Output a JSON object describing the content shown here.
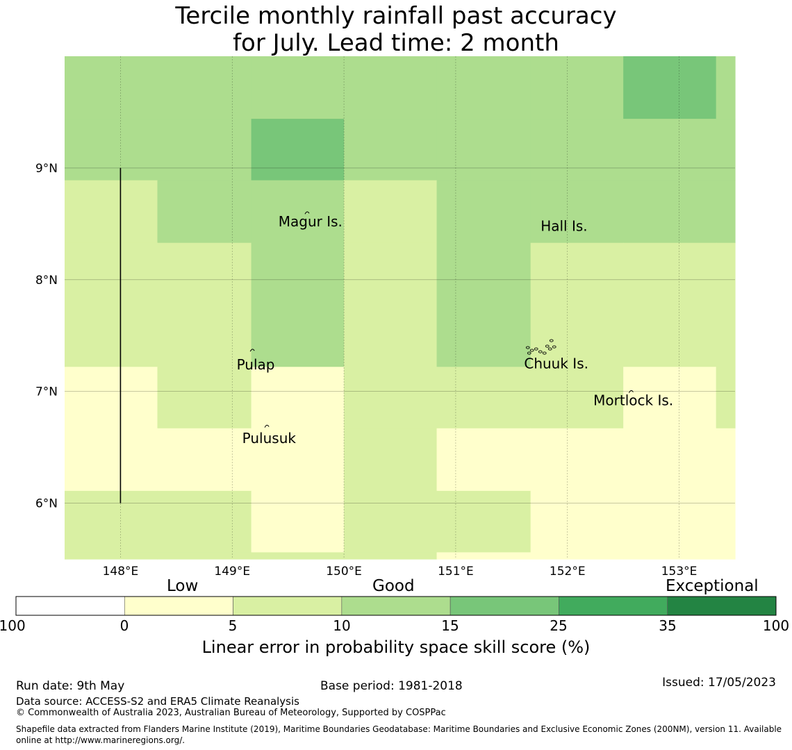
{
  "title": {
    "line1": "Tercile monthly rainfall past accuracy",
    "line2": "for July. Lead time: 2 month"
  },
  "map": {
    "lon_range": [
      147.5,
      153.5
    ],
    "lat_range": [
      5.5,
      10.0
    ],
    "x_ticks": [
      {
        "value": 148,
        "label": "148°E"
      },
      {
        "value": 149,
        "label": "149°E"
      },
      {
        "value": 150,
        "label": "150°E"
      },
      {
        "value": 151,
        "label": "151°E"
      },
      {
        "value": 152,
        "label": "152°E"
      },
      {
        "value": 153,
        "label": "153°E"
      }
    ],
    "y_ticks": [
      {
        "value": 9,
        "label": "9°N"
      },
      {
        "value": 8,
        "label": "8°N"
      },
      {
        "value": 7,
        "label": "7°N"
      },
      {
        "value": 6,
        "label": "6°N"
      }
    ],
    "grid": true,
    "lon_edges": [
      147.5,
      148.33,
      149.17,
      150.0,
      150.83,
      151.67,
      152.5,
      153.33,
      153.5
    ],
    "lat_edges": [
      10.0,
      9.44,
      8.89,
      8.33,
      7.22,
      6.67,
      6.11,
      5.56,
      5.5
    ],
    "cells": [
      [
        2,
        2,
        2,
        2,
        2,
        2,
        3,
        2
      ],
      [
        2,
        2,
        3,
        2,
        2,
        2,
        2,
        2
      ],
      [
        1,
        2,
        2,
        1,
        2,
        2,
        2,
        2
      ],
      [
        1,
        1,
        2,
        1,
        2,
        1,
        1,
        1
      ],
      [
        0,
        1,
        0,
        1,
        1,
        1,
        0,
        1
      ],
      [
        0,
        0,
        0,
        1,
        0,
        0,
        0,
        0
      ],
      [
        1,
        1,
        0,
        1,
        1,
        0,
        0,
        0
      ],
      [
        1,
        1,
        1,
        1,
        0,
        0,
        0,
        0
      ]
    ],
    "meridian_line": {
      "lon": 148.0,
      "lat_from": 6.0,
      "lat_to": 9.0
    },
    "places": [
      {
        "name": "Magur Is.",
        "lon": 149.7,
        "lat": 8.52,
        "marker_lon": 149.67,
        "marker_lat": 8.6
      },
      {
        "name": "Hall Is.",
        "lon": 151.97,
        "lat": 8.48
      },
      {
        "name": "Pulap",
        "lon": 149.21,
        "lat": 7.24,
        "marker_lon": 149.18,
        "marker_lat": 7.37
      },
      {
        "name": "Chuuk Is.",
        "lon": 151.9,
        "lat": 7.25,
        "marker_lon": 151.77,
        "marker_lat": 7.38
      },
      {
        "name": "Mortlock Is.",
        "lon": 152.59,
        "lat": 6.92,
        "marker_lon": 152.57,
        "marker_lat": 7.0
      },
      {
        "name": "Pulusuk",
        "lon": 149.33,
        "lat": 6.58,
        "marker_lon": 149.31,
        "marker_lat": 6.69
      }
    ]
  },
  "colorbar": {
    "words": {
      "low": "Low",
      "good": "Good",
      "exceptional": "Exceptional"
    },
    "bins": [
      {
        "from": "-100",
        "to": "0",
        "color": "#ffffff"
      },
      {
        "from": "0",
        "to": "5",
        "color": "#ffffcc"
      },
      {
        "from": "5",
        "to": "10",
        "color": "#d9f0a3"
      },
      {
        "from": "10",
        "to": "15",
        "color": "#addd8e"
      },
      {
        "from": "15",
        "to": "25",
        "color": "#78c679"
      },
      {
        "from": "25",
        "to": "35",
        "color": "#41ab5d"
      },
      {
        "from": "35",
        "to": "100",
        "color": "#238443"
      }
    ],
    "tick_labels": [
      "-100",
      "0",
      "5",
      "10",
      "15",
      "25",
      "35",
      "100"
    ],
    "label": "Linear error in probability space skill score (%)"
  },
  "footer": {
    "run_date": "Run date: 9th May",
    "base_period": "Base period: 1981-2018",
    "issued": "Issued: 17/05/2023",
    "data_source": "Data source: ACCESS-S2 and ERA5 Climate Reanalysis",
    "copyright": "© Commonwealth of Australia 2023, Australian Bureau of Meteorology, Supported by COSPPac",
    "shapefile_line1": "Shapefile data extracted from Flanders Marine Institute (2019), Maritime Boundaries Geodatabase: Maritime Boundaries and Exclusive Economic Zones (200NM), version 11. Available",
    "shapefile_line2": "online at http://www.marineregions.org/."
  }
}
